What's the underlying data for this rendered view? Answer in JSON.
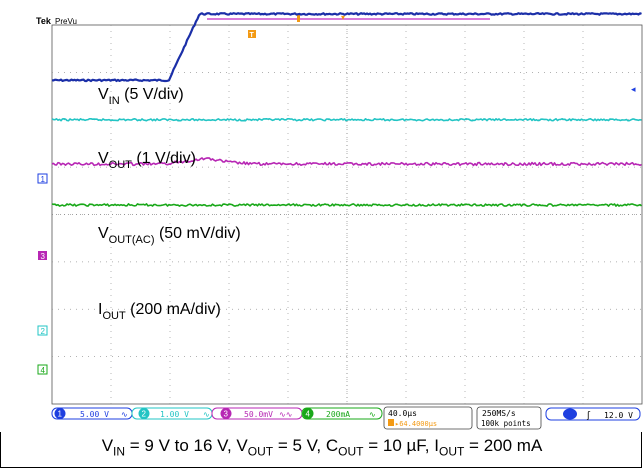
{
  "scope": {
    "brand": "Tek",
    "mode": "PreVu",
    "trigger_marker": "T",
    "channel_markers": [
      "1",
      "2",
      "3",
      "4"
    ]
  },
  "traces": [
    {
      "id": "vin",
      "label_main": "V",
      "label_sub": "IN",
      "label_rest": " (5 V/div)",
      "color": "#1b2fa8"
    },
    {
      "id": "vout",
      "label_main": "V",
      "label_sub": "OUT",
      "label_rest": " (1 V/div)",
      "color": "#22c4c4"
    },
    {
      "id": "vout_ac",
      "label_main": "V",
      "label_sub": "OUT(AC)",
      "label_rest": " (50 mV/div)",
      "color": "#b727b4"
    },
    {
      "id": "iout",
      "label_main": "I",
      "label_sub": "OUT",
      "label_rest": " (200 mA/div)",
      "color": "#19a819"
    }
  ],
  "status_bar": {
    "ch1": {
      "num": "1",
      "value": "5.00 V",
      "color": "#1e3fe0"
    },
    "ch2": {
      "num": "2",
      "value": "1.00 V",
      "color": "#22c4c4"
    },
    "ch3": {
      "num": "3",
      "value": "50.0mV",
      "color": "#b727b4"
    },
    "ch4": {
      "num": "4",
      "value": "200mA",
      "color": "#19a819"
    },
    "timebase": "40.0µs",
    "trigger_pos": "▸64.4000µs",
    "sample_rate": "250MS/s",
    "record_length": "100k points",
    "trigger_level": "12.0 V"
  },
  "chart_data": {
    "type": "line",
    "title": "",
    "xlabel": "",
    "ylabel": "",
    "x_divisions": 10,
    "y_divisions": 8,
    "series": [
      {
        "name": "VIN (5 V/div)",
        "color": "#1b2fa8",
        "x": [
          0,
          1.5,
          1.98,
          2.5,
          10
        ],
        "y": [
          0,
          0,
          0,
          1.4,
          1.4
        ]
      },
      {
        "name": "VOUT (1 V/div)",
        "color": "#22c4c4",
        "x": [
          0,
          10
        ],
        "y": [
          0,
          0
        ]
      },
      {
        "name": "VOUT(AC) (50 mV/div)",
        "color": "#b727b4",
        "x": [
          0,
          1.9,
          2.2,
          2.6,
          3.0,
          3.4,
          10
        ],
        "y": [
          0,
          0,
          0.05,
          0.12,
          0.04,
          0,
          0
        ]
      },
      {
        "name": "IOUT (200 mA/div)",
        "color": "#19a819",
        "x": [
          0,
          10
        ],
        "y": [
          0,
          0
        ]
      }
    ]
  },
  "caption": {
    "text": "VIN = 9 V to 16 V, VOUT = 5 V, COUT = 10 µF, IOUT = 200 mA",
    "parts": [
      {
        "main": "V",
        "sub": "IN",
        "rest": " = 9 V to 16 V, "
      },
      {
        "main": "V",
        "sub": "OUT",
        "rest": " = 5 V, "
      },
      {
        "main": "C",
        "sub": "OUT",
        "rest": " = 10 µF, "
      },
      {
        "main": "I",
        "sub": "OUT",
        "rest": " = 200 mA"
      }
    ]
  }
}
